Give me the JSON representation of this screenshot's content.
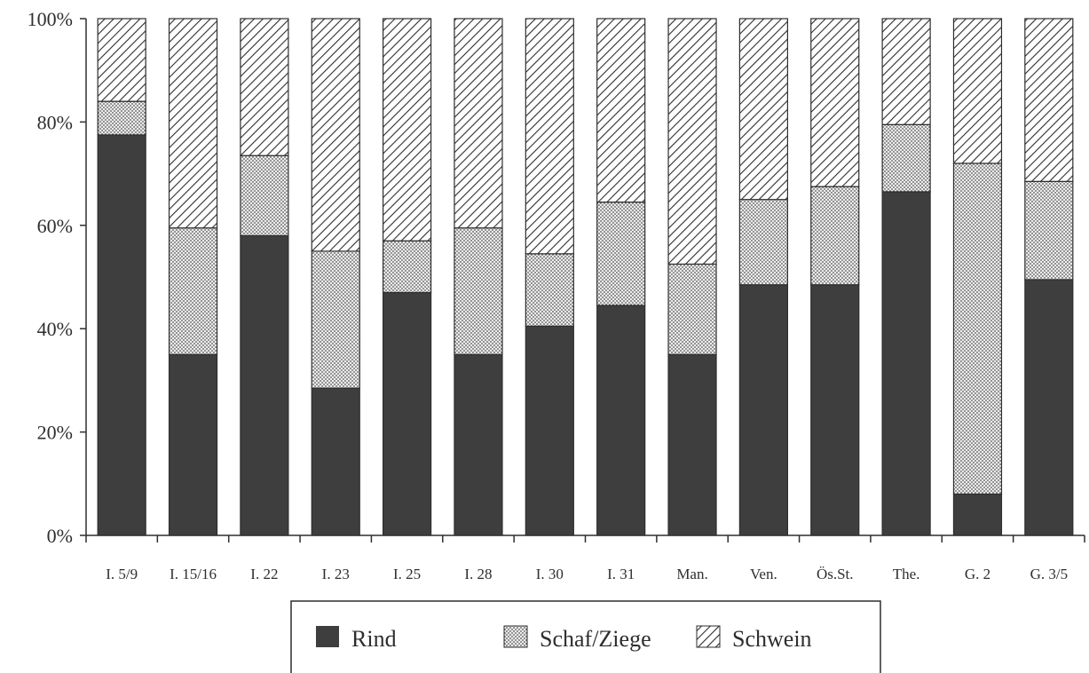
{
  "chart_data": {
    "type": "bar",
    "stacked": true,
    "percent": true,
    "categories": [
      "I. 5/9",
      "I. 15/16",
      "I. 22",
      "I. 23",
      "I. 25",
      "I. 28",
      "I. 30",
      "I. 31",
      "Man.",
      "Ven.",
      "Ös.St.",
      "The.",
      "G. 2",
      "G. 3/5"
    ],
    "series": [
      {
        "name": "Rind",
        "values": [
          77.5,
          35,
          58,
          28.5,
          47,
          35,
          40.5,
          44.5,
          35,
          48.5,
          48.5,
          66.5,
          8,
          49.5
        ],
        "pattern": "solid",
        "color": "#3e3e3e"
      },
      {
        "name": "Schaf/Ziege",
        "values": [
          6.5,
          24.5,
          15.5,
          26.5,
          10,
          24.5,
          14,
          20,
          17.5,
          16.5,
          19,
          13,
          64,
          19
        ],
        "pattern": "dotted",
        "color": "#bdbdbd"
      },
      {
        "name": "Schwein",
        "values": [
          16,
          40.5,
          26.5,
          45,
          43,
          40.5,
          45.5,
          35.5,
          47.5,
          35,
          32.5,
          20.5,
          28,
          31.5
        ],
        "pattern": "hatched",
        "color": "#2e2e2e"
      }
    ],
    "yticks": [
      "0%",
      "20%",
      "40%",
      "60%",
      "80%",
      "100%"
    ],
    "ylim": [
      0,
      100
    ],
    "grid": false,
    "legend_position": "bottom-center"
  }
}
